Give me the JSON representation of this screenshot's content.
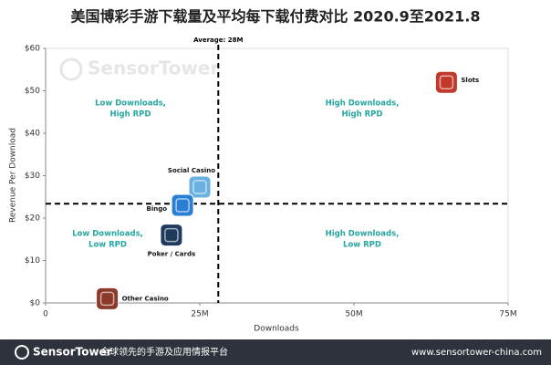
{
  "chart_data": {
    "type": "scatter",
    "title": "美国博彩手游下载量及平均每下载付费对比   2020.9至2021.8",
    "xlabel": "Downloads",
    "ylabel": "Revenue Per Download",
    "watermark": "SensorTower",
    "xlim": [
      0,
      75000000
    ],
    "xticks": [
      0,
      {
        "value": 25000000,
        "label": "25M"
      },
      {
        "value": 50000000,
        "label": "50M"
      },
      {
        "value": 75000000,
        "label": "75M"
      }
    ],
    "ylim": [
      0,
      60
    ],
    "yticks": [
      {
        "value": 0,
        "label": "$0"
      },
      {
        "value": 10,
        "label": "$10"
      },
      {
        "value": 20,
        "label": "$20"
      },
      {
        "value": 30,
        "label": "$30"
      },
      {
        "value": 40,
        "label": "$40"
      },
      {
        "value": 50,
        "label": "$50"
      },
      {
        "value": 60,
        "label": "$60"
      }
    ],
    "average_downloads": {
      "value": 28000000,
      "label": "Average: 28M"
    },
    "average_rpd": 23.4,
    "quadrants": [
      [
        "Low Downloads,",
        "High RPD"
      ],
      [
        "High Downloads,",
        "High RPD"
      ],
      [
        "Low Downloads,",
        "Low RPD"
      ],
      [
        "High Downloads,",
        "Low RPD"
      ]
    ],
    "points": [
      {
        "name": "Slots",
        "x": 65000000,
        "y": 52,
        "color": "#c0392b"
      },
      {
        "name": "Social Casino",
        "x": 25000000,
        "y": 27.3,
        "color": "#6ab0e0"
      },
      {
        "name": "Bingo",
        "x": 22200000,
        "y": 23,
        "color": "#2a7fd4"
      },
      {
        "name": "Poker / Cards",
        "x": 20400000,
        "y": 16,
        "color": "#1f3a5c"
      },
      {
        "name": "Other Casino",
        "x": 10000000,
        "y": 1,
        "color": "#8b3a2a"
      }
    ]
  },
  "footer": {
    "brand": "SensorTower",
    "slogan": "全球领先的手游及应用情报平台",
    "url": "www.sensortower-china.com"
  }
}
